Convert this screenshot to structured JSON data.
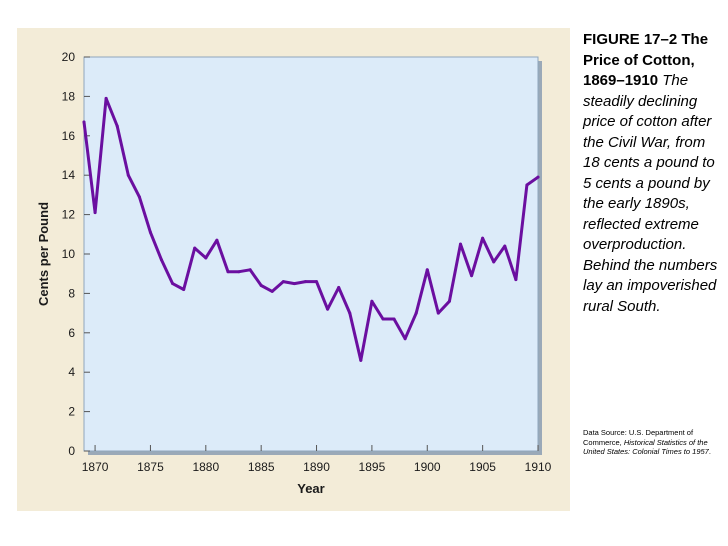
{
  "caption": {
    "figure_title": "FIGURE 17–2 The Price of Cotton, 1869–1910",
    "description": "The steadily declining price of cotton after the Civil War, from 18 cents a pound to 5 cents a pound by the early 1890s, reflected extreme overproduction. Behind the numbers lay an impoverished rural South."
  },
  "source": {
    "prefix": "Data Source: U.S. Department of Commerce, ",
    "title": "Historical Statistics of the United States: Colonial Times to 1957",
    "suffix": "."
  },
  "colors": {
    "panel": "#f3ecd8",
    "plot_bg": "#dcebf9",
    "plot_border": "#8fa6bd",
    "line": "#6b0fa0",
    "text": "#1a1a1a"
  },
  "chart_data": {
    "type": "line",
    "title": "",
    "xlabel": "Year",
    "ylabel": "Cents per Pound",
    "xlim": [
      1869,
      1910
    ],
    "ylim": [
      0,
      20
    ],
    "xticks": [
      1870,
      1875,
      1880,
      1885,
      1890,
      1895,
      1900,
      1905,
      1910
    ],
    "xtick_labels": [
      "1870",
      "1875",
      "1880",
      "1885",
      "1890",
      "1895",
      "1900",
      "1905",
      "1910"
    ],
    "yticks": [
      0,
      2,
      4,
      6,
      8,
      10,
      12,
      14,
      16,
      18,
      20
    ],
    "ytick_labels": [
      "0",
      "2",
      "4",
      "6",
      "8",
      "10",
      "12",
      "14",
      "16",
      "18",
      "20"
    ],
    "grid": false,
    "series": [
      {
        "name": "Price of cotton",
        "x": [
          1869,
          1870,
          1871,
          1872,
          1873,
          1874,
          1875,
          1876,
          1877,
          1878,
          1879,
          1880,
          1881,
          1882,
          1883,
          1884,
          1885,
          1886,
          1887,
          1888,
          1889,
          1890,
          1891,
          1892,
          1893,
          1894,
          1895,
          1896,
          1897,
          1898,
          1899,
          1900,
          1901,
          1902,
          1903,
          1904,
          1905,
          1906,
          1907,
          1908,
          1909,
          1910
        ],
        "values": [
          16.7,
          12.1,
          17.9,
          16.5,
          14.0,
          12.9,
          11.1,
          9.7,
          8.5,
          8.2,
          10.3,
          9.8,
          10.7,
          9.1,
          9.1,
          9.2,
          8.4,
          8.1,
          8.6,
          8.5,
          8.6,
          8.6,
          7.2,
          8.3,
          7.0,
          4.6,
          7.6,
          6.7,
          6.7,
          5.7,
          7.0,
          9.2,
          7.0,
          7.6,
          10.5,
          8.9,
          10.8,
          9.6,
          10.4,
          8.7,
          13.5,
          13.9
        ]
      }
    ]
  }
}
